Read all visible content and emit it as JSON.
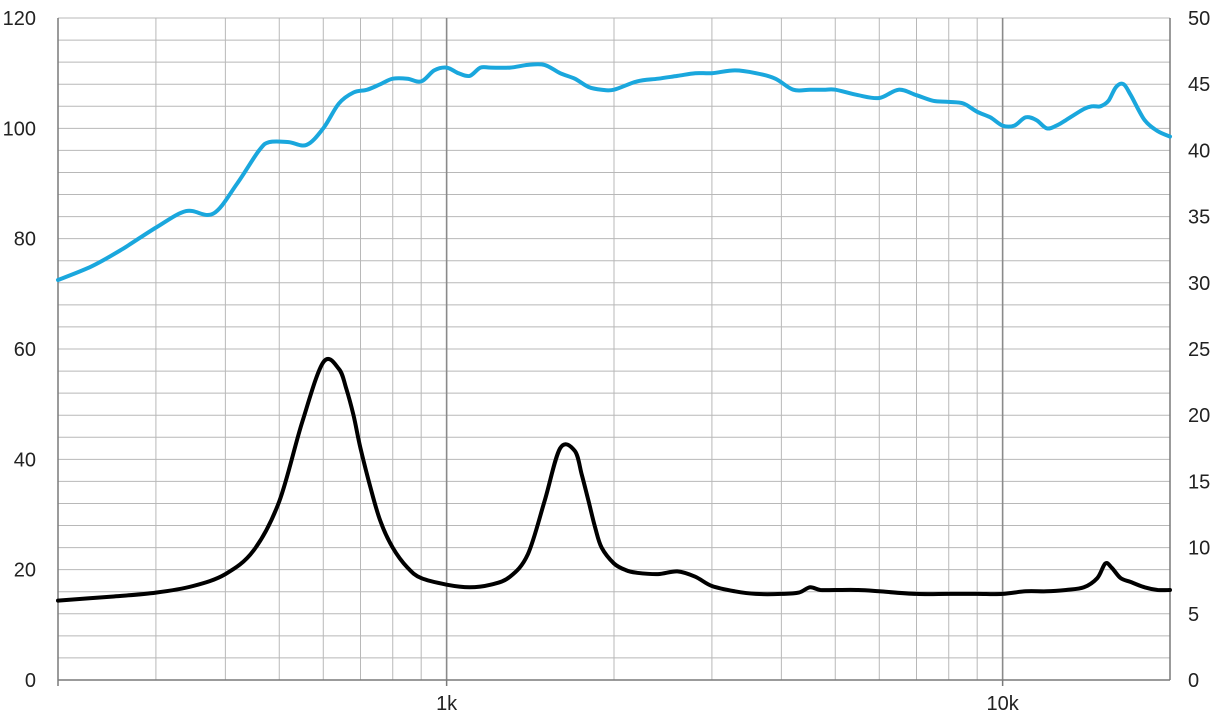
{
  "chart_data": {
    "type": "line",
    "title": "",
    "xlabel": "",
    "ylabel": "",
    "xscale": "log",
    "xlim": [
      200,
      20000
    ],
    "ylim": [
      0,
      120
    ],
    "y2lim": [
      0,
      50
    ],
    "grid": true,
    "legend": "none",
    "x_tick_labels": [
      {
        "value": 1000,
        "label": "1k"
      },
      {
        "value": 10000,
        "label": "10k"
      }
    ],
    "y_tick_labels": [
      "0",
      "20",
      "40",
      "60",
      "80",
      "100",
      "120"
    ],
    "y2_tick_labels": [
      "0",
      "5",
      "10",
      "15",
      "20",
      "25",
      "30",
      "35",
      "40",
      "45",
      "50"
    ],
    "series": [
      {
        "axis": "left",
        "color": "#1aa7dd",
        "x": [
          200,
          230,
          260,
          300,
          340,
          380,
          420,
          460,
          480,
          520,
          560,
          600,
          640,
          680,
          720,
          760,
          800,
          850,
          900,
          950,
          1000,
          1050,
          1100,
          1150,
          1200,
          1300,
          1400,
          1500,
          1600,
          1700,
          1800,
          1900,
          2000,
          2200,
          2400,
          2600,
          2800,
          3000,
          3300,
          3600,
          3900,
          4200,
          4500,
          4800,
          5000,
          5500,
          6000,
          6500,
          7000,
          7500,
          8000,
          8500,
          9000,
          9500,
          10000,
          10500,
          11000,
          11500,
          12000,
          12500,
          13000,
          14000,
          14500,
          15000,
          15500,
          16000,
          16500,
          17000,
          18000,
          19000,
          20000
        ],
        "y": [
          72.5,
          75,
          78,
          82,
          85,
          84.5,
          90,
          96,
          97.5,
          97.5,
          97,
          100,
          104.5,
          106.5,
          107,
          108,
          109,
          109,
          108.5,
          110.5,
          111,
          110,
          109.5,
          111,
          111,
          111,
          111.5,
          111.5,
          110,
          109,
          107.5,
          107,
          107,
          108.5,
          109,
          109.5,
          110,
          110,
          110.5,
          110,
          109,
          107,
          107,
          107,
          107,
          106,
          105.5,
          107,
          106,
          105,
          104.8,
          104.5,
          103,
          102,
          100.5,
          100.5,
          102,
          101.5,
          100,
          100.5,
          101.5,
          103.5,
          104,
          104,
          105,
          107.5,
          108,
          106,
          101.5,
          99.5,
          98.5
        ]
      },
      {
        "axis": "right",
        "color": "#000000",
        "x": [
          200,
          250,
          300,
          350,
          400,
          450,
          500,
          550,
          600,
          640,
          660,
          680,
          700,
          730,
          760,
          800,
          850,
          900,
          1000,
          1100,
          1200,
          1300,
          1400,
          1500,
          1600,
          1700,
          1750,
          1800,
          1850,
          1900,
          2000,
          2100,
          2200,
          2400,
          2600,
          2800,
          3000,
          3300,
          3600,
          4000,
          4300,
          4500,
          4700,
          5000,
          5500,
          6000,
          7000,
          8000,
          9000,
          10000,
          11000,
          12000,
          13000,
          14000,
          14800,
          15300,
          15700,
          16300,
          17000,
          18000,
          19000,
          20000
        ],
        "y": [
          6.0,
          6.3,
          6.6,
          7.1,
          8.0,
          9.8,
          13.5,
          19.5,
          24.0,
          23.5,
          22.0,
          20.0,
          17.5,
          14.5,
          12.0,
          10.0,
          8.5,
          7.7,
          7.2,
          7.0,
          7.2,
          7.8,
          9.5,
          13.5,
          17.5,
          17.3,
          15.5,
          13.5,
          11.5,
          10.0,
          8.8,
          8.3,
          8.1,
          8.0,
          8.2,
          7.8,
          7.1,
          6.7,
          6.5,
          6.5,
          6.6,
          7.0,
          6.8,
          6.8,
          6.8,
          6.7,
          6.5,
          6.5,
          6.5,
          6.5,
          6.7,
          6.7,
          6.8,
          7.0,
          7.7,
          8.8,
          8.5,
          7.7,
          7.4,
          7.0,
          6.8,
          6.8
        ]
      }
    ]
  }
}
